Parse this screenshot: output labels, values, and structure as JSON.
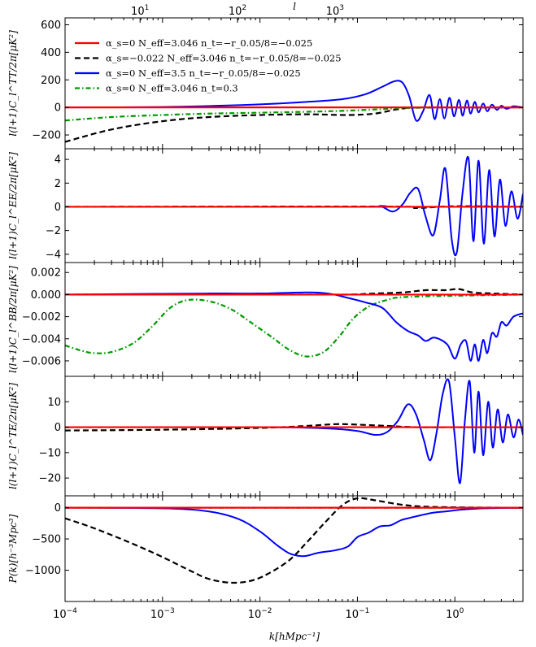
{
  "figure": {
    "top_axis_label": "l",
    "top_ticks": [
      "10",
      "10",
      "10"
    ],
    "top_tick_exponents": [
      "1",
      "2",
      "3"
    ],
    "top_tick_l": [
      10,
      100,
      1000
    ],
    "bottom_axis_label": "k[hMpc⁻¹]",
    "bottom_ticks": [
      "10",
      "10",
      "10",
      "10",
      "10"
    ],
    "bottom_tick_exponents": [
      "-4",
      "-3",
      "-2",
      "-1",
      "0"
    ]
  },
  "legend": [
    {
      "label": "α_s=0  N_eff=3.046  n_t=−r_0.05/8=−0.025",
      "color": "#ff0000",
      "dash": "solid"
    },
    {
      "label": "α_s=−0.022  N_eff=3.046  n_t=−r_0.05/8=−0.025",
      "color": "#000000",
      "dash": "dashed"
    },
    {
      "label": "α_s=0  N_eff=3.5  n_t=−r_0.05/8=−0.025",
      "color": "#0000ff",
      "dash": "solid"
    },
    {
      "label": "α_s=0  N_eff=3.046  n_t=0.3",
      "color": "#009900",
      "dash": "dashdot"
    }
  ],
  "chart_data": [
    {
      "type": "line",
      "ylabel": "l(l+1)C_l^TT/2π[μK²]",
      "xscale": "log",
      "xlim": [
        0.0001,
        5
      ],
      "ylim": [
        -300,
        650
      ],
      "yticks": [
        -200,
        0,
        200,
        400,
        600
      ],
      "ytick_labels": [
        "−200",
        "0",
        "200",
        "400",
        "600"
      ],
      "series": [
        {
          "name": "red",
          "color": "#ff0000",
          "dash": "solid",
          "x": [
            0.0001,
            5
          ],
          "y": [
            0,
            0
          ]
        },
        {
          "name": "black",
          "color": "#000000",
          "dash": "dashed",
          "x": [
            0.0001,
            0.0003,
            0.001,
            0.003,
            0.01,
            0.03,
            0.08,
            0.15,
            0.25,
            0.4,
            1,
            5
          ],
          "y": [
            -250,
            -160,
            -100,
            -70,
            -55,
            -50,
            -55,
            -45,
            -15,
            0,
            0,
            0
          ]
        },
        {
          "name": "green",
          "color": "#009900",
          "dash": "dashdot",
          "x": [
            0.0001,
            0.0003,
            0.001,
            0.003,
            0.01,
            0.05,
            0.15,
            0.3,
            1,
            5
          ],
          "y": [
            -95,
            -70,
            -55,
            -45,
            -38,
            -28,
            -15,
            -5,
            0,
            0
          ]
        },
        {
          "name": "blue",
          "color": "#0000ff",
          "dash": "solid",
          "x": [
            0.0001,
            0.001,
            0.003,
            0.01,
            0.03,
            0.07,
            0.12,
            0.18,
            0.24,
            0.29,
            0.34,
            0.4,
            0.47,
            0.55,
            0.62,
            0.7,
            0.78,
            0.88,
            0.98,
            1.1,
            1.2,
            1.33,
            1.45,
            1.6,
            1.75,
            1.95,
            2.15,
            2.4,
            2.7,
            3.0,
            3.4,
            4.0,
            5.0
          ],
          "y": [
            0,
            3,
            10,
            22,
            40,
            60,
            95,
            150,
            190,
            180,
            80,
            -95,
            -30,
            90,
            -85,
            60,
            -80,
            70,
            -65,
            55,
            -60,
            50,
            -45,
            40,
            -35,
            28,
            -28,
            20,
            -18,
            12,
            -10,
            8,
            0
          ]
        }
      ]
    },
    {
      "type": "line",
      "ylabel": "l(l+1)C_l^EE/2π[μK²]",
      "xscale": "log",
      "xlim": [
        0.0001,
        5
      ],
      "ylim": [
        -4.7,
        4.9
      ],
      "yticks": [
        -4,
        -2,
        0,
        2,
        4
      ],
      "ytick_labels": [
        "−4",
        "−2",
        "0",
        "2",
        "4"
      ],
      "series": [
        {
          "name": "red",
          "color": "#ff0000",
          "dash": "solid",
          "x": [
            0.0001,
            5
          ],
          "y": [
            0,
            0
          ]
        },
        {
          "name": "black",
          "color": "#000000",
          "dash": "dashed",
          "x": [
            0.0001,
            0.2,
            0.4,
            1,
            5
          ],
          "y": [
            0,
            0.02,
            -0.1,
            0.05,
            0
          ]
        },
        {
          "name": "green",
          "color": "#009900",
          "dash": "dashdot",
          "x": [
            0.0001,
            5
          ],
          "y": [
            0,
            0
          ]
        },
        {
          "name": "blue",
          "color": "#0000ff",
          "dash": "solid",
          "x": [
            0.0001,
            0.1,
            0.17,
            0.23,
            0.29,
            0.35,
            0.42,
            0.5,
            0.6,
            0.7,
            0.8,
            0.93,
            1.05,
            1.2,
            1.38,
            1.55,
            1.75,
            1.98,
            2.25,
            2.55,
            2.9,
            3.3,
            3.8,
            4.4,
            5.0
          ],
          "y": [
            0,
            0,
            0.05,
            -0.4,
            0.2,
            1.2,
            1.5,
            -0.8,
            -2.4,
            0.5,
            3.2,
            -2.8,
            -3.8,
            1.2,
            4.1,
            -2.9,
            3.9,
            -3.1,
            3.1,
            -2.5,
            2.3,
            -1.6,
            1.3,
            -1.0,
            1.1
          ]
        }
      ]
    },
    {
      "type": "line",
      "ylabel": "l(l+1)C_l^BB/2π[μK²]",
      "xscale": "log",
      "xlim": [
        0.0001,
        5
      ],
      "ylim": [
        -0.0074,
        0.0029
      ],
      "yticks": [
        -0.006,
        -0.004,
        -0.002,
        0.0,
        0.002
      ],
      "ytick_labels": [
        "−0.006",
        "−0.004",
        "−0.002",
        "0.000",
        "0.002"
      ],
      "series": [
        {
          "name": "red",
          "color": "#ff0000",
          "dash": "solid",
          "x": [
            0.0001,
            5
          ],
          "y": [
            0,
            0
          ]
        },
        {
          "name": "black",
          "color": "#000000",
          "dash": "dashed",
          "x": [
            0.0001,
            0.03,
            0.08,
            0.15,
            0.3,
            0.5,
            0.8,
            1.1,
            1.5,
            2.5,
            5
          ],
          "y": [
            0,
            0,
            0,
            0.0001,
            0.0002,
            0.0004,
            0.0004,
            0.0005,
            0.0002,
            0.0001,
            0
          ]
        },
        {
          "name": "green",
          "color": "#009900",
          "dash": "dashdot",
          "x": [
            0.0001,
            0.00015,
            0.0002,
            0.0003,
            0.0005,
            0.0008,
            0.0012,
            0.0018,
            0.003,
            0.005,
            0.008,
            0.013,
            0.02,
            0.03,
            0.045,
            0.065,
            0.09,
            0.13,
            0.2,
            0.35,
            5
          ],
          "y": [
            -0.0046,
            -0.0051,
            -0.0053,
            -0.0052,
            -0.0044,
            -0.0028,
            -0.0012,
            -0.0005,
            -0.0006,
            -0.0013,
            -0.0025,
            -0.0038,
            -0.005,
            -0.0056,
            -0.0052,
            -0.0038,
            -0.0022,
            -0.0011,
            -0.0005,
            -0.0002,
            0
          ]
        },
        {
          "name": "blue",
          "color": "#0000ff",
          "dash": "solid",
          "x": [
            0.0001,
            0.003,
            0.01,
            0.03,
            0.05,
            0.08,
            0.12,
            0.18,
            0.25,
            0.33,
            0.42,
            0.5,
            0.6,
            0.72,
            0.85,
            1.0,
            1.15,
            1.3,
            1.45,
            1.6,
            1.75,
            1.95,
            2.15,
            2.4,
            2.7,
            3.0,
            3.4,
            4.0,
            5.0
          ],
          "y": [
            0,
            0.0001,
            0.0001,
            0.0002,
            0.0001,
            -0.0003,
            -0.0007,
            -0.0012,
            -0.0025,
            -0.0033,
            -0.0037,
            -0.0042,
            -0.0039,
            -0.0041,
            -0.0046,
            -0.0058,
            -0.0045,
            -0.0042,
            -0.006,
            -0.0045,
            -0.006,
            -0.0041,
            -0.0053,
            -0.0035,
            -0.0038,
            -0.0025,
            -0.0028,
            -0.002,
            -0.0017
          ]
        }
      ]
    },
    {
      "type": "line",
      "ylabel": "l(l+1)C_l^TE/2π[μK²]",
      "xscale": "log",
      "xlim": [
        0.0001,
        5
      ],
      "ylim": [
        -27,
        20
      ],
      "yticks": [
        -20,
        -10,
        0,
        10
      ],
      "ytick_labels": [
        "−20",
        "−10",
        "0",
        "10"
      ],
      "series": [
        {
          "name": "red",
          "color": "#ff0000",
          "dash": "solid",
          "x": [
            0.0001,
            5
          ],
          "y": [
            0,
            0
          ]
        },
        {
          "name": "black",
          "color": "#000000",
          "dash": "dashed",
          "x": [
            0.0001,
            0.001,
            0.01,
            0.03,
            0.06,
            0.1,
            0.2,
            0.4,
            1,
            5
          ],
          "y": [
            -1.3,
            -1.0,
            -0.3,
            0.5,
            1.2,
            1.0,
            0.5,
            0,
            0,
            0
          ]
        },
        {
          "name": "green",
          "color": "#009900",
          "dash": "dashdot",
          "x": [
            0.0001,
            5
          ],
          "y": [
            0,
            0
          ]
        },
        {
          "name": "blue",
          "color": "#0000ff",
          "dash": "solid",
          "x": [
            0.0001,
            0.01,
            0.05,
            0.1,
            0.15,
            0.2,
            0.26,
            0.33,
            0.4,
            0.48,
            0.56,
            0.65,
            0.75,
            0.87,
            1.0,
            1.13,
            1.27,
            1.42,
            1.58,
            1.75,
            1.95,
            2.2,
            2.45,
            2.75,
            3.1,
            3.5,
            4.0,
            4.5,
            5.0
          ],
          "y": [
            0,
            0,
            -0.5,
            -1.5,
            -3,
            -2,
            2.5,
            9,
            5,
            -5,
            -13,
            -2,
            13,
            18,
            -4,
            -22,
            3,
            18,
            -10,
            14,
            -11,
            10,
            -8,
            7,
            -6,
            5,
            -4,
            3,
            -3
          ]
        }
      ]
    },
    {
      "type": "line",
      "ylabel": "P(k)[h⁻³Mpc³]",
      "xscale": "log",
      "xlim": [
        0.0001,
        5
      ],
      "ylim": [
        -1500,
        190
      ],
      "yticks": [
        -1000,
        -500,
        0
      ],
      "ytick_labels": [
        "−1000",
        "−500",
        "0"
      ],
      "series": [
        {
          "name": "red",
          "color": "#ff0000",
          "dash": "solid",
          "x": [
            0.0001,
            5
          ],
          "y": [
            0,
            0
          ]
        },
        {
          "name": "black",
          "color": "#000000",
          "dash": "dashed",
          "x": [
            0.0001,
            0.0002,
            0.0005,
            0.001,
            0.002,
            0.003,
            0.005,
            0.008,
            0.012,
            0.02,
            0.03,
            0.045,
            0.07,
            0.1,
            0.15,
            0.25,
            0.4,
            0.7,
            1.2,
            2,
            5
          ],
          "y": [
            -170,
            -330,
            -580,
            -790,
            -1020,
            -1140,
            -1200,
            -1170,
            -1060,
            -840,
            -560,
            -260,
            40,
            150,
            120,
            60,
            25,
            10,
            5,
            2,
            0
          ]
        },
        {
          "name": "green",
          "color": "#009900",
          "dash": "dashdot",
          "x": [
            0.0001,
            5
          ],
          "y": [
            0,
            0
          ]
        },
        {
          "name": "blue",
          "color": "#0000ff",
          "dash": "solid",
          "x": [
            0.0001,
            0.001,
            0.003,
            0.006,
            0.01,
            0.015,
            0.02,
            0.025,
            0.03,
            0.04,
            0.06,
            0.08,
            0.1,
            0.13,
            0.17,
            0.22,
            0.28,
            0.35,
            0.45,
            0.6,
            0.8,
            1.2,
            2,
            5
          ],
          "y": [
            0,
            -10,
            -60,
            -180,
            -380,
            -600,
            -730,
            -770,
            -770,
            -720,
            -680,
            -620,
            -470,
            -400,
            -300,
            -280,
            -200,
            -160,
            -120,
            -80,
            -60,
            -30,
            -10,
            0
          ]
        }
      ]
    }
  ]
}
